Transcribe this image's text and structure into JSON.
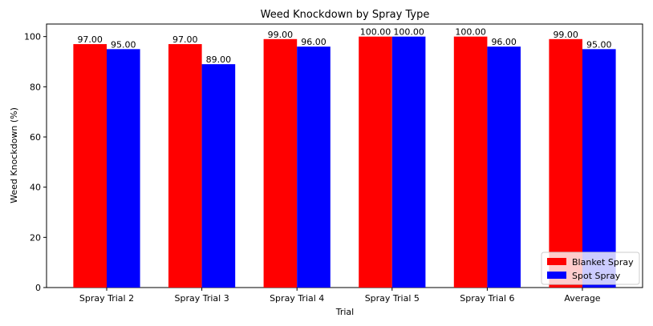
{
  "chart_data": {
    "type": "bar",
    "title": "Weed Knockdown by Spray Type",
    "xlabel": "Trial",
    "ylabel": "Weed Knockdown (%)",
    "categories": [
      "Spray Trial 2",
      "Spray Trial 3",
      "Spray Trial 4",
      "Spray Trial 5",
      "Spray Trial 6",
      "Average"
    ],
    "series": [
      {
        "name": "Blanket Spray",
        "color": "#ff0000",
        "values": [
          97.0,
          97.0,
          99.0,
          100.0,
          100.0,
          99.0
        ],
        "labels": [
          "97.00",
          "97.00",
          "99.00",
          "100.00",
          "100.00",
          "99.00"
        ]
      },
      {
        "name": "Spot Spray",
        "color": "#0000ff",
        "values": [
          95.0,
          89.0,
          96.0,
          100.0,
          96.0,
          95.0
        ],
        "labels": [
          "95.00",
          "89.00",
          "96.00",
          "100.00",
          "96.00",
          "95.00"
        ]
      }
    ],
    "ylim": [
      0,
      105
    ],
    "yticks": [
      0,
      20,
      40,
      60,
      80,
      100
    ],
    "grid": false,
    "legend_position": "bottom-right"
  }
}
